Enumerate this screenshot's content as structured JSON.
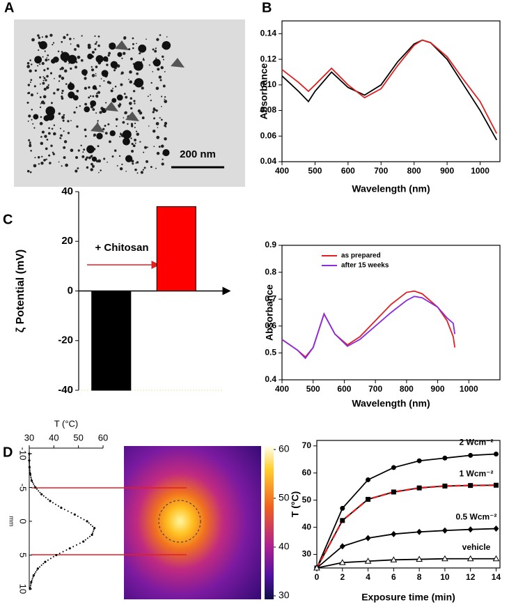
{
  "panel_labels": [
    "A",
    "B",
    "C",
    "D"
  ],
  "image_a": {
    "scale_bar": "200 nm"
  },
  "chart_data": [
    {
      "type": "line",
      "xlabel": "Wavelength (nm)",
      "ylabel": "Absorbance",
      "x": [
        400,
        450,
        480,
        500,
        550,
        600,
        650,
        700,
        750,
        800,
        825,
        850,
        900,
        950,
        1000,
        1050
      ],
      "series": [
        {
          "color": "#000000",
          "values": [
            0.107,
            0.095,
            0.087,
            0.095,
            0.11,
            0.098,
            0.092,
            0.1,
            0.118,
            0.132,
            0.135,
            0.133,
            0.12,
            0.1,
            0.08,
            0.057
          ]
        },
        {
          "color": "#e02020",
          "values": [
            0.112,
            0.102,
            0.095,
            0.1,
            0.113,
            0.1,
            0.09,
            0.097,
            0.115,
            0.131,
            0.135,
            0.133,
            0.122,
            0.104,
            0.087,
            0.062
          ]
        }
      ],
      "xlim": [
        400,
        1060
      ],
      "xticks": [
        400,
        500,
        600,
        700,
        800,
        900,
        1000
      ],
      "ylim": [
        0.04,
        0.15
      ],
      "yticks": [
        0.04,
        0.06,
        0.08,
        {
          "value": 0.1,
          "label": "0.10"
        },
        0.12,
        0.14
      ]
    },
    {
      "type": "bar",
      "ylabel": "ζ Potential (mV)",
      "annotation": "+ Chitosan",
      "categories": [
        null,
        null
      ],
      "values": [
        -40,
        34
      ],
      "colors": [
        "#000000",
        "#ff0000"
      ],
      "ylim": [
        -40,
        40
      ],
      "yticks": [
        -40,
        -20,
        0,
        20,
        40
      ]
    },
    {
      "type": "line",
      "xlabel": "Wavelength (nm)",
      "ylabel": "Absorbance",
      "legend": "upper center",
      "x": [
        400,
        450,
        475,
        500,
        535,
        570,
        610,
        650,
        700,
        750,
        800,
        825,
        850,
        900,
        930,
        950,
        955
      ],
      "series": [
        {
          "name": "as prepared",
          "color": "#e02020",
          "values": [
            0.55,
            0.51,
            0.485,
            0.52,
            0.645,
            0.57,
            0.53,
            0.56,
            0.62,
            0.68,
            0.725,
            0.73,
            0.72,
            0.67,
            0.62,
            0.56,
            0.52
          ]
        },
        {
          "name": "after 15 weeks",
          "color": "#8a2be2",
          "values": [
            0.55,
            0.51,
            0.48,
            0.52,
            0.645,
            0.57,
            0.525,
            0.55,
            0.6,
            0.65,
            0.695,
            0.71,
            0.705,
            0.67,
            0.63,
            0.61,
            0.57
          ]
        }
      ],
      "xlim": [
        400,
        1100
      ],
      "xticks": [
        400,
        500,
        600,
        700,
        800,
        900,
        1000
      ],
      "ylim": [
        0.4,
        0.9
      ],
      "yticks": [
        0.4,
        0.5,
        0.6,
        0.7,
        0.8,
        0.9
      ]
    },
    {
      "type": "profile",
      "xlabel": "mm",
      "ylabel": "T (°C)",
      "x": [
        -10,
        -9,
        -8,
        -7,
        -6,
        -5,
        -4,
        -3,
        -2,
        -1,
        0,
        1,
        2,
        3,
        4,
        5,
        6,
        7,
        8,
        9,
        10
      ],
      "values": [
        30.0,
        30.0,
        30.1,
        30.4,
        31.0,
        32.5,
        35.0,
        38.5,
        43,
        48.5,
        53.5,
        56.5,
        55.5,
        52,
        46.5,
        41,
        36.5,
        33.5,
        31.8,
        30.8,
        30.3
      ],
      "xlim": [
        -10,
        10
      ],
      "xticks": [
        -10,
        -5,
        0,
        5,
        10
      ],
      "ylim": [
        30,
        60
      ],
      "yticks": [
        30,
        40,
        50,
        60
      ]
    },
    {
      "type": "heatmap",
      "zlim": [
        30,
        60
      ],
      "zticks": [
        30,
        40,
        50,
        60
      ]
    },
    {
      "type": "line",
      "xlabel": "Exposure time (min)",
      "ylabel": "T (°C)",
      "x": [
        0,
        2,
        4,
        6,
        8,
        10,
        12,
        14
      ],
      "series": [
        {
          "name": "2 Wcm⁻²",
          "color": "#000000",
          "marker": "circle",
          "values": [
            25,
            47,
            57.5,
            62,
            64.5,
            65.5,
            66.5,
            67
          ]
        },
        {
          "name": "1 Wcm⁻²",
          "color": "#000000",
          "dash_color": "#e02020",
          "marker": "square",
          "values": [
            25,
            42.5,
            50.3,
            53,
            54.5,
            55.2,
            55.4,
            55.5
          ]
        },
        {
          "name": "0.5 Wcm⁻²",
          "color": "#000000",
          "marker": "diamond",
          "values": [
            25,
            33,
            36,
            37.5,
            38.3,
            38.8,
            39.2,
            39.5
          ]
        },
        {
          "name": "vehicle",
          "color": "#000000",
          "marker": "triangle-open",
          "values": [
            25,
            27,
            27.5,
            28,
            28.2,
            28.4,
            28.4,
            28.4
          ]
        }
      ],
      "xlim": [
        0,
        14.3
      ],
      "xticks": [
        0,
        2,
        4,
        6,
        8,
        10,
        12,
        14
      ],
      "ylim": [
        25,
        72
      ],
      "yticks": [
        30,
        40,
        50,
        60,
        70
      ]
    }
  ]
}
